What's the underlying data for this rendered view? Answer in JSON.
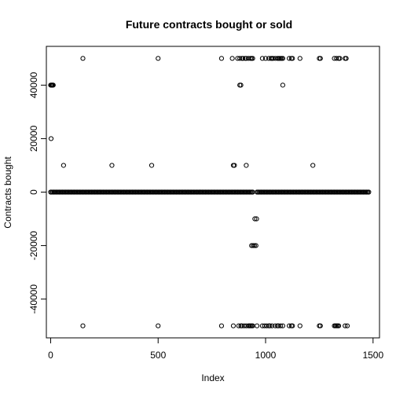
{
  "chart_data": {
    "type": "scatter",
    "title": "Future contracts bought or sold",
    "xlabel": "Index",
    "ylabel": "Contracts bought",
    "xlim": [
      -20,
      1530
    ],
    "ylim": [
      -54500,
      54500
    ],
    "x_ticks": [
      0,
      500,
      1000,
      1500
    ],
    "x_tick_labels": [
      "0",
      "500",
      "1000",
      "1500"
    ],
    "y_ticks": [
      -40000,
      -20000,
      0,
      20000,
      40000
    ],
    "y_tick_labels": [
      "-40000",
      "-20000",
      "0",
      "20000",
      "40000"
    ],
    "legend": "none",
    "grid": false,
    "marker": "open circle",
    "series": [
      {
        "points": [
          [
            0,
            40000
          ],
          [
            3,
            40000
          ],
          [
            6,
            40000
          ],
          [
            9,
            40000
          ],
          [
            12,
            40000
          ],
          [
            2,
            20000
          ],
          [
            60,
            10000
          ],
          [
            285,
            10000
          ],
          [
            470,
            10000
          ],
          [
            850,
            10000
          ],
          [
            855,
            10000
          ],
          [
            910,
            10000
          ],
          [
            1220,
            10000
          ],
          [
            150,
            50000
          ],
          [
            500,
            50000
          ],
          [
            795,
            50000
          ],
          [
            845,
            50000
          ],
          [
            870,
            50000
          ],
          [
            880,
            50000
          ],
          [
            890,
            50000
          ],
          [
            895,
            50000
          ],
          [
            905,
            50000
          ],
          [
            910,
            50000
          ],
          [
            920,
            50000
          ],
          [
            930,
            50000
          ],
          [
            935,
            50000
          ],
          [
            940,
            50000
          ],
          [
            985,
            50000
          ],
          [
            1000,
            50000
          ],
          [
            1015,
            50000
          ],
          [
            1025,
            50000
          ],
          [
            1030,
            50000
          ],
          [
            1035,
            50000
          ],
          [
            1045,
            50000
          ],
          [
            1055,
            50000
          ],
          [
            1060,
            50000
          ],
          [
            1065,
            50000
          ],
          [
            1070,
            50000
          ],
          [
            1075,
            50000
          ],
          [
            1080,
            50000
          ],
          [
            1110,
            50000
          ],
          [
            1120,
            50000
          ],
          [
            1125,
            50000
          ],
          [
            1160,
            50000
          ],
          [
            1250,
            50000
          ],
          [
            1255,
            50000
          ],
          [
            1320,
            50000
          ],
          [
            1330,
            50000
          ],
          [
            1340,
            50000
          ],
          [
            1345,
            50000
          ],
          [
            1370,
            50000
          ],
          [
            1375,
            50000
          ],
          [
            880,
            40000
          ],
          [
            885,
            40000
          ],
          [
            1080,
            40000
          ],
          [
            950,
            -10000
          ],
          [
            958,
            -10000
          ],
          [
            935,
            -20000
          ],
          [
            942,
            -20000
          ],
          [
            948,
            -20000
          ],
          [
            955,
            -20000
          ],
          [
            150,
            -50000
          ],
          [
            500,
            -50000
          ],
          [
            795,
            -50000
          ],
          [
            850,
            -50000
          ],
          [
            875,
            -50000
          ],
          [
            885,
            -50000
          ],
          [
            890,
            -50000
          ],
          [
            900,
            -50000
          ],
          [
            910,
            -50000
          ],
          [
            920,
            -50000
          ],
          [
            925,
            -50000
          ],
          [
            930,
            -50000
          ],
          [
            935,
            -50000
          ],
          [
            940,
            -50000
          ],
          [
            960,
            -50000
          ],
          [
            985,
            -50000
          ],
          [
            995,
            -50000
          ],
          [
            1005,
            -50000
          ],
          [
            1015,
            -50000
          ],
          [
            1020,
            -50000
          ],
          [
            1030,
            -50000
          ],
          [
            1045,
            -50000
          ],
          [
            1055,
            -50000
          ],
          [
            1060,
            -50000
          ],
          [
            1070,
            -50000
          ],
          [
            1080,
            -50000
          ],
          [
            1110,
            -50000
          ],
          [
            1120,
            -50000
          ],
          [
            1125,
            -50000
          ],
          [
            1160,
            -50000
          ],
          [
            1250,
            -50000
          ],
          [
            1255,
            -50000
          ],
          [
            1320,
            -50000
          ],
          [
            1325,
            -50000
          ],
          [
            1330,
            -50000
          ],
          [
            1335,
            -50000
          ],
          [
            1340,
            -50000
          ],
          [
            1370,
            -50000
          ],
          [
            1380,
            -50000
          ]
        ],
        "zero_runs": [
          [
            0,
            940
          ],
          [
            960,
            1480
          ]
        ],
        "zero_run_step": 5
      }
    ]
  }
}
